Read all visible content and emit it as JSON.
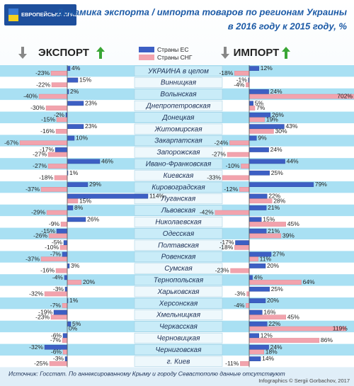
{
  "logo": "ЕВРОПЕЙСЬКА ПРАВДА",
  "chart_data": {
    "type": "bar",
    "title": "Динамика экспорта / импорта товаров по регионам Украины",
    "subtitle": "в 2016 году  к  2015 году, %",
    "panels": [
      {
        "key": "export",
        "title": "ЭКСПОРТ"
      },
      {
        "key": "import",
        "title": "ИМПОРТ"
      }
    ],
    "categories": [
      "УКРАИНА в целом",
      "Винницкая",
      "Волынская",
      "Днепропетровская",
      "Донецкая",
      "Житомирская",
      "Закарпатская",
      "Запорожская",
      "Ивано-Франковская",
      "Киевская",
      "Кировоградская",
      "Луганская",
      "Львовская",
      "Николаевская",
      "Одесская",
      "Полтавская",
      "Ровенская",
      "Сумская",
      "Тернопольская",
      "Харьковская",
      "Херсонская",
      "Хмельницкая",
      "Черкасская",
      "Черновицкая",
      "Черниговская",
      "г. Киев"
    ],
    "series": [
      {
        "name": "Страны ЕС",
        "color": "#3d5fc4",
        "export": {
          "values": [
            4,
            15,
            2,
            23,
            -2,
            23,
            10,
            -17,
            46,
            1,
            29,
            114,
            8,
            26,
            -15,
            -5,
            -7,
            3,
            -4,
            -3,
            1,
            -19,
            5,
            -6,
            -32,
            -3
          ],
          "value_labels": [
            "4%",
            "15%",
            "2%",
            "23%",
            "-2%",
            "23%",
            "10%",
            "-17%",
            "46%",
            "1%",
            "29%",
            "114%",
            "8%",
            "26%",
            "-15%",
            "-5%",
            "-7%",
            "3%",
            "-4%",
            "-3%",
            "1%",
            "-19%",
            "5%",
            "-6%",
            "-32%",
            "-3%"
          ]
        },
        "import": {
          "values": [
            12,
            -1,
            24,
            5,
            26,
            43,
            9,
            24,
            44,
            25,
            79,
            22,
            21,
            15,
            21,
            -17,
            27,
            20,
            4,
            25,
            20,
            16,
            22,
            12,
            24,
            14
          ],
          "value_labels": [
            "12%",
            "-1%",
            "24%",
            "5%",
            "26%",
            "43%",
            "9%",
            "24%",
            "44%",
            "25%",
            "79%",
            "22%",
            "21%",
            "15%",
            "21%",
            "-17%",
            "27%",
            "20%",
            "4%",
            "25%",
            "20%",
            "16%",
            "22%",
            "12%",
            "24%",
            "14%"
          ]
        }
      },
      {
        "name": "Страны СНГ",
        "color": "#f2a3ad",
        "export": {
          "values": [
            -23,
            -22,
            -40,
            -30,
            -15,
            -16,
            -67,
            -27,
            -27,
            -18,
            -37,
            15,
            -29,
            -9,
            -26,
            -10,
            -37,
            -16,
            20,
            -32,
            -7,
            -23,
            0,
            -7,
            -6,
            -25
          ],
          "value_labels": [
            "-23%",
            "-22%",
            "-40%",
            "-30%",
            "-15%",
            "-16%",
            "-67%",
            "-27%",
            "-27%",
            "-18%",
            "-37%",
            "15%",
            "-29%",
            "-9%",
            "-26%",
            "-10%",
            "-37%",
            "-16%",
            "20%",
            "-32%",
            "-7%",
            "-23%",
            "0%",
            "-7%",
            "-6%",
            "-25%"
          ]
        },
        "import": {
          "values": [
            -18,
            -4,
            702,
            7,
            19,
            30,
            -24,
            -27,
            -10,
            -33,
            -12,
            28,
            -42,
            45,
            39,
            -18,
            11,
            -23,
            64,
            -3,
            -4,
            45,
            119,
            86,
            18,
            -11
          ],
          "value_labels": [
            "-18%",
            "-4%",
            "702%",
            "7%",
            "19%",
            "30%",
            "-24%",
            "-27%",
            "-10%",
            "-33%",
            "-12%",
            "28%",
            "-42%",
            "45%",
            "39%",
            "-18%",
            "11%",
            "-23%",
            "64%",
            "-3%",
            "-4%",
            "45%",
            "119%",
            "86%",
            "18%",
            "-11%"
          ]
        }
      }
    ],
    "source": "Источник: Госстат. По аннексированному Крыму и городу Севастополю данные отсутствуют",
    "credit": "Infographics © Sergii Gorbachov, 2017"
  }
}
